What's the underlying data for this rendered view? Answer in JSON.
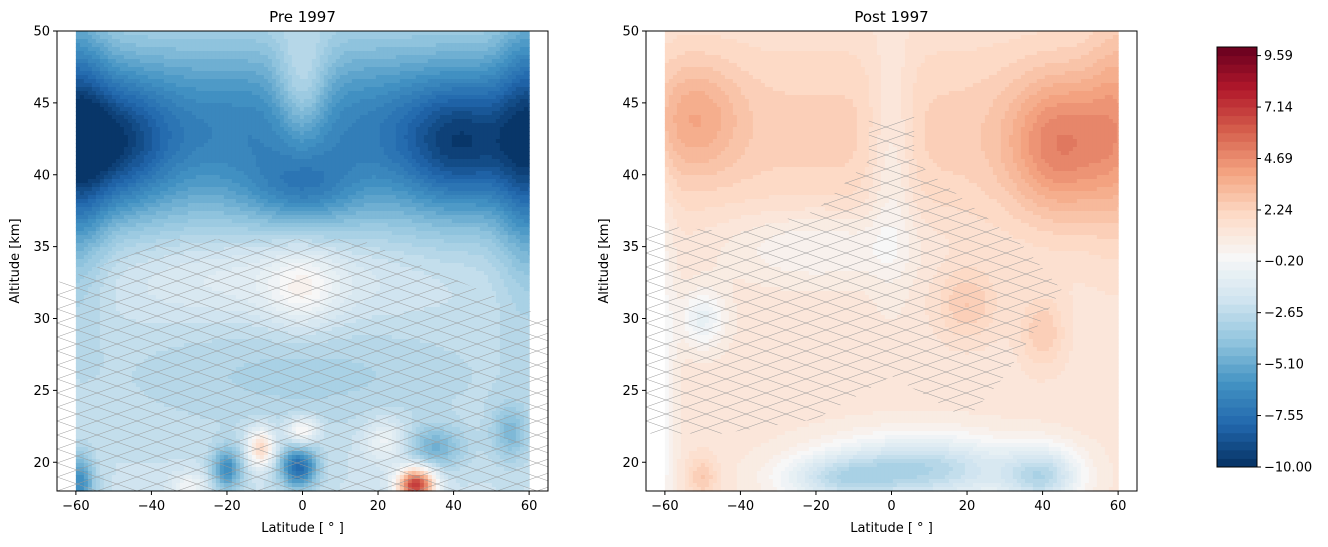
{
  "chart_data": [
    {
      "type": "heatmap",
      "subtype": "filled-contour",
      "title": "Pre 1997",
      "xlabel": "Latitude [$^\\circ$]",
      "xlabel_display": "Latitude [ ° ]",
      "ylabel": "Altitude [km]",
      "xlim": [
        -65,
        65
      ],
      "ylim": [
        18,
        50
      ],
      "xticks": [
        -60,
        -40,
        -20,
        0,
        20,
        40,
        60
      ],
      "yticks": [
        20,
        25,
        30,
        35,
        40,
        45,
        50
      ],
      "xtick_labels": [
        "−60",
        "−40",
        "−20",
        "0",
        "20",
        "40",
        "60"
      ],
      "ytick_labels": [
        "20",
        "25",
        "30",
        "35",
        "40",
        "45",
        "50"
      ],
      "data_x_range": [
        -60,
        60
      ],
      "data_y_range": [
        18,
        50
      ],
      "features": [
        {
          "x": -50,
          "y": 42,
          "value": -8.5
        },
        {
          "x": 40,
          "y": 42,
          "value": -8.0
        },
        {
          "x": 0,
          "y": 40,
          "value": -4.0
        },
        {
          "x": -5,
          "y": 20,
          "value": -9.0
        },
        {
          "x": -20,
          "y": 20,
          "value": -7.0
        },
        {
          "x": -60,
          "y": 19,
          "value": -6.0
        },
        {
          "x": 30,
          "y": 19,
          "value": 9.0
        },
        {
          "x": -10,
          "y": 21,
          "value": 4.0
        },
        {
          "x": 0,
          "y": 32,
          "value": 1.5
        },
        {
          "x": 0,
          "y": 22,
          "value": 3.0
        }
      ],
      "hatch": "significance cross-hatching at low altitudes (about 18–35 km)"
    },
    {
      "type": "heatmap",
      "subtype": "filled-contour",
      "title": "Post 1997",
      "xlabel": "Latitude [$^\\circ$]",
      "xlabel_display": "Latitude [ ° ]",
      "ylabel": "Altitude [km]",
      "xlim": [
        -65,
        65
      ],
      "ylim": [
        18,
        50
      ],
      "xticks": [
        -60,
        -40,
        -20,
        0,
        20,
        40,
        60
      ],
      "yticks": [
        20,
        25,
        30,
        35,
        40,
        45,
        50
      ],
      "xtick_labels": [
        "−60",
        "−40",
        "−20",
        "0",
        "20",
        "40",
        "60"
      ],
      "ytick_labels": [
        "20",
        "25",
        "30",
        "35",
        "40",
        "45",
        "50"
      ],
      "data_x_range": [
        -60,
        60
      ],
      "data_y_range": [
        18,
        50
      ],
      "features": [
        {
          "x": -50,
          "y": 44,
          "value": 3.0
        },
        {
          "x": 45,
          "y": 42,
          "value": 4.0
        },
        {
          "x": 10,
          "y": 19,
          "value": -5.0
        },
        {
          "x": 40,
          "y": 19,
          "value": -5.5
        },
        {
          "x": -10,
          "y": 19,
          "value": -3.0
        },
        {
          "x": 20,
          "y": 31,
          "value": 2.5
        },
        {
          "x": -50,
          "y": 30,
          "value": -2.0
        }
      ],
      "hatch": "significance cross-hatching at low altitudes and along the equator"
    }
  ],
  "colorbar": {
    "colormap": "RdBu_r",
    "vmin": -10.0,
    "vmax": 10.0,
    "tick_values": [
      9.59,
      7.14,
      4.69,
      2.24,
      -0.2,
      -2.65,
      -5.1,
      -7.55,
      -10.0
    ],
    "tick_labels": [
      "9.59",
      "7.14",
      "4.69",
      "2.24",
      "−0.20",
      "−2.65",
      "−5.10",
      "−7.55",
      "−10.00"
    ]
  }
}
